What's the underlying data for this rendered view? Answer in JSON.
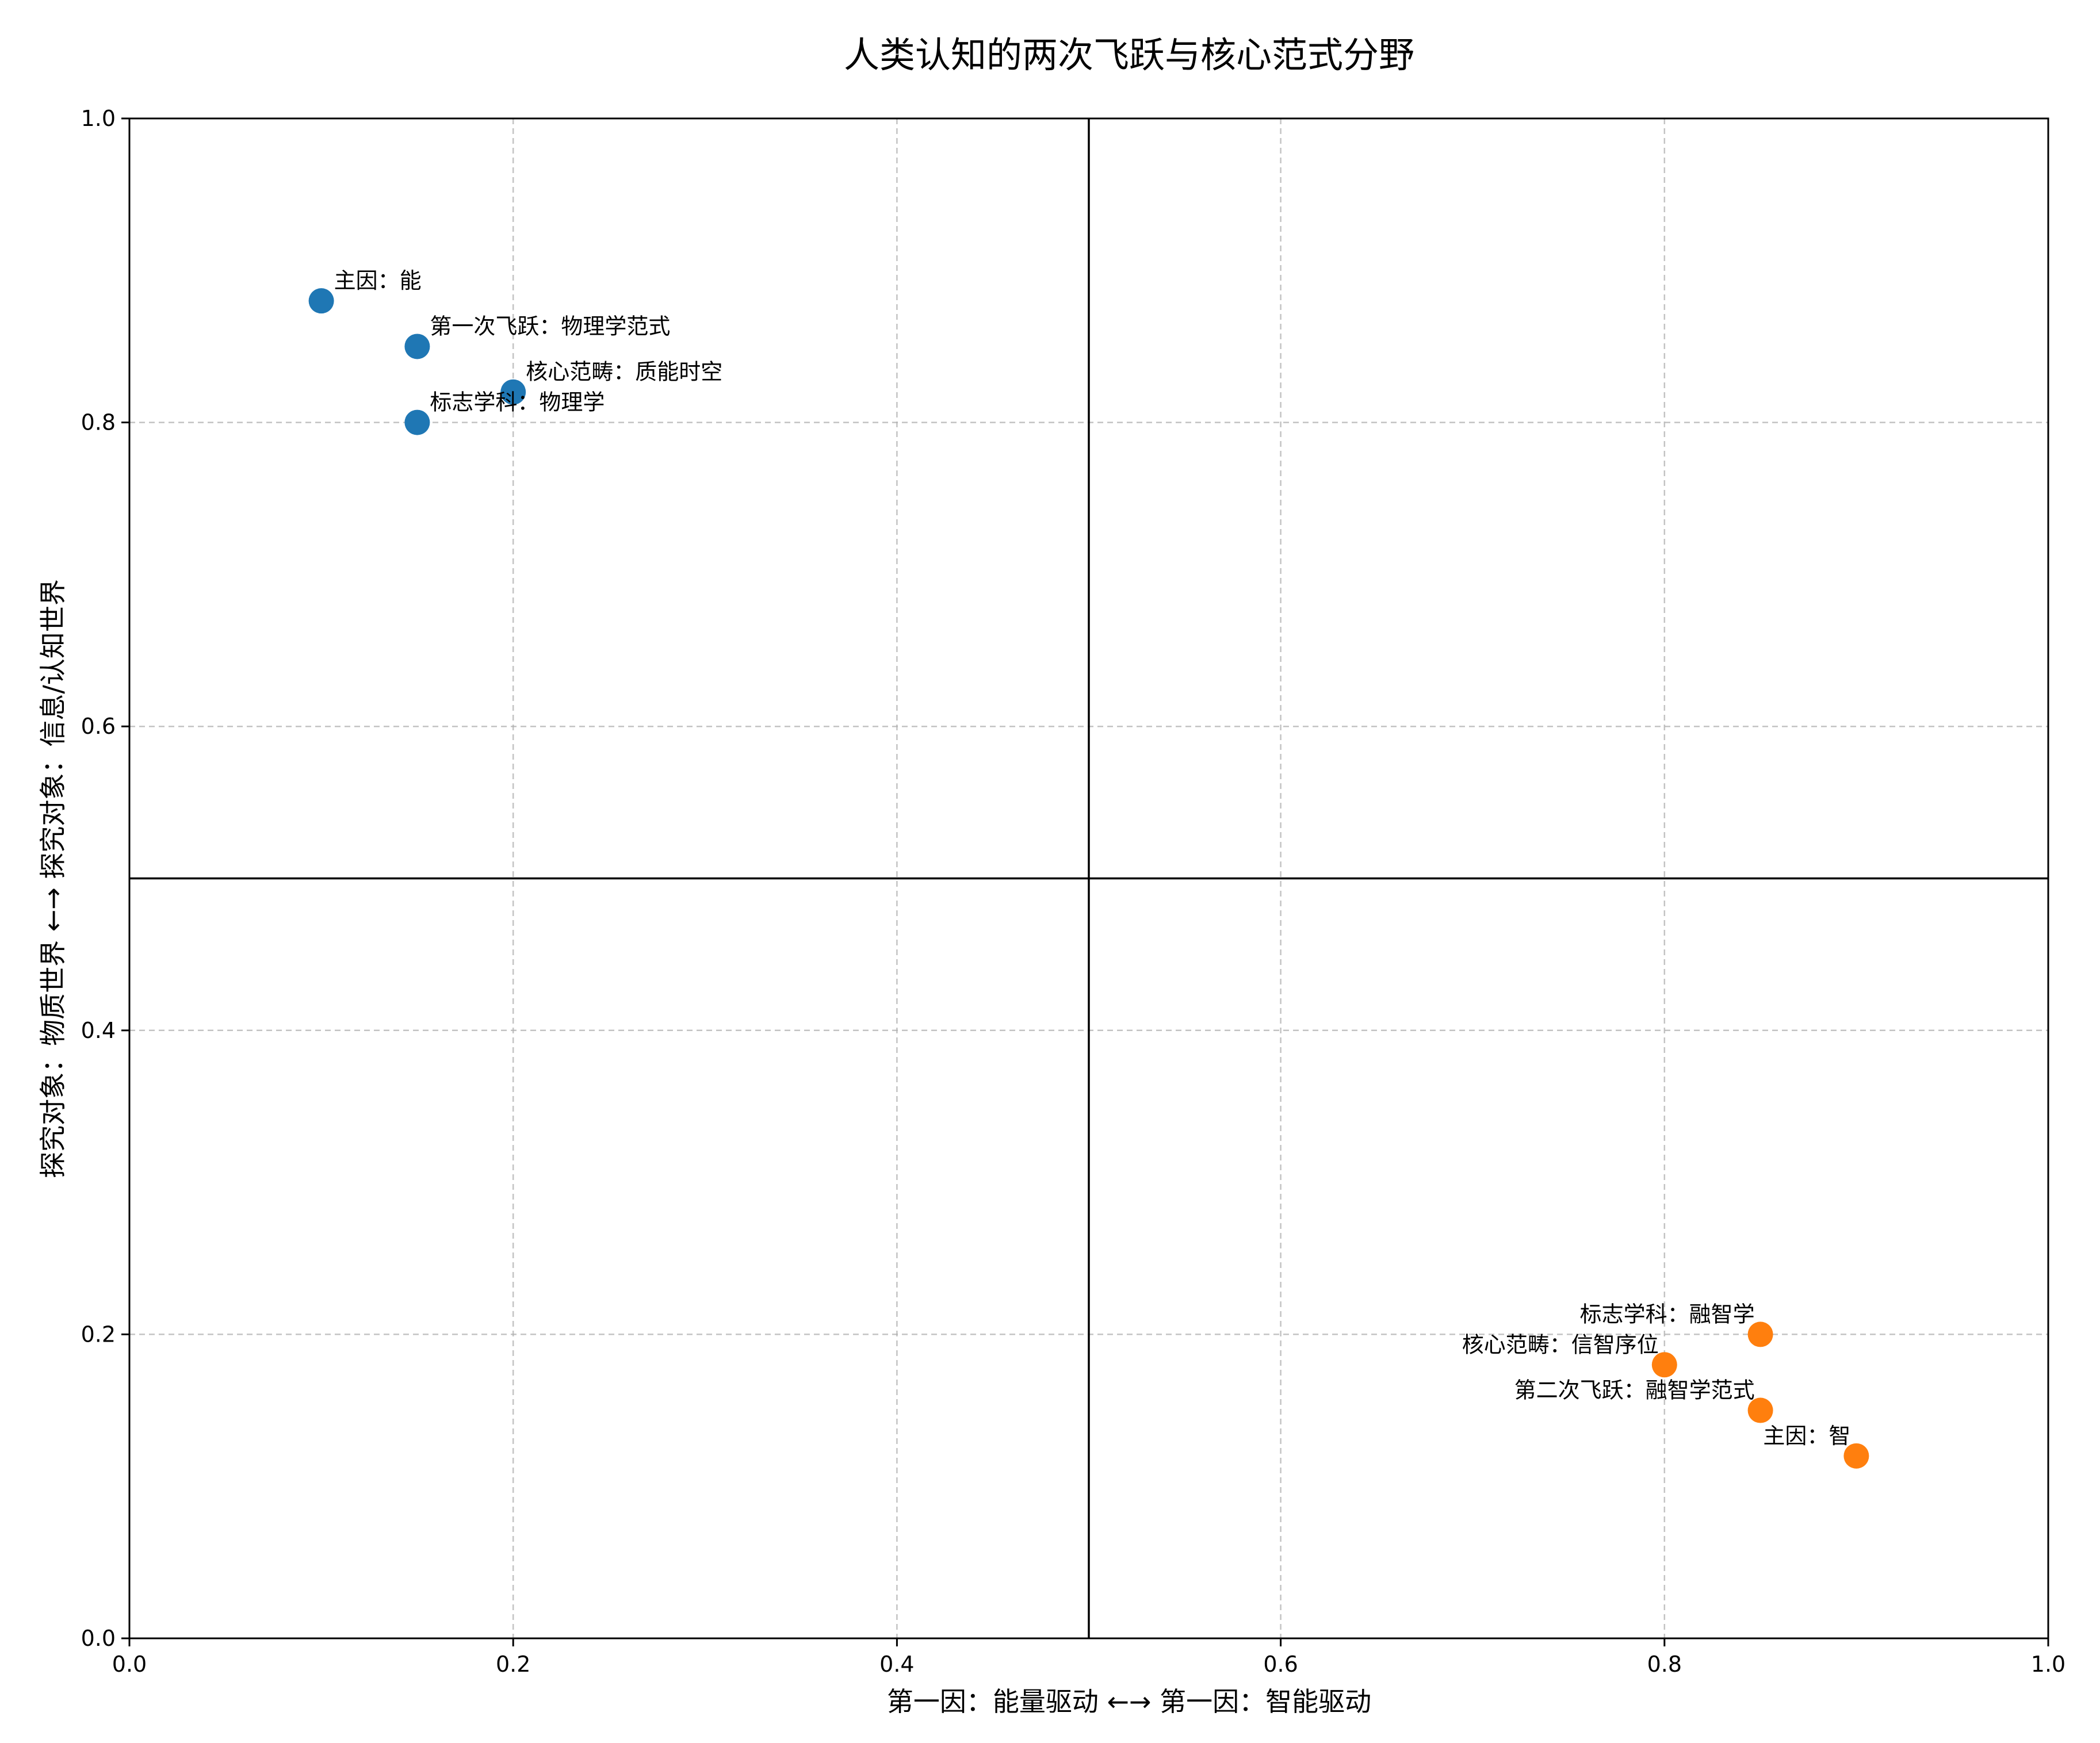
{
  "chart_data": {
    "type": "scatter",
    "title": "人类认知的两次飞跃与核心范式分野",
    "xlabel": "第一因：能量驱动 ←→ 第一因：智能驱动",
    "ylabel": "探究对象：物质世界 ←→ 探究对象：信息/认知世界",
    "xlim": [
      0.0,
      1.0
    ],
    "ylim": [
      0.0,
      1.0
    ],
    "xticks": [
      "0.0",
      "0.2",
      "0.4",
      "0.6",
      "0.8",
      "1.0"
    ],
    "yticks": [
      "0.0",
      "0.2",
      "0.4",
      "0.6",
      "0.8",
      "1.0"
    ],
    "grid": true,
    "dividers": {
      "x": 0.5,
      "y": 0.5
    },
    "series": [
      {
        "color": "#1f77b4",
        "label_align": "left",
        "points": [
          {
            "x": 0.1,
            "y": 0.88,
            "label": "主因：能"
          },
          {
            "x": 0.15,
            "y": 0.85,
            "label": "第一次飞跃：物理学范式"
          },
          {
            "x": 0.2,
            "y": 0.82,
            "label": "核心范畴：质能时空"
          },
          {
            "x": 0.15,
            "y": 0.8,
            "label": "标志学科：物理学"
          }
        ]
      },
      {
        "color": "#ff7f0e",
        "label_align": "right",
        "points": [
          {
            "x": 0.9,
            "y": 0.12,
            "label": "主因：智"
          },
          {
            "x": 0.85,
            "y": 0.15,
            "label": "第二次飞跃：融智学范式"
          },
          {
            "x": 0.8,
            "y": 0.18,
            "label": "核心范畴：信智序位"
          },
          {
            "x": 0.85,
            "y": 0.2,
            "label": "标志学科：融智学"
          }
        ]
      }
    ]
  }
}
